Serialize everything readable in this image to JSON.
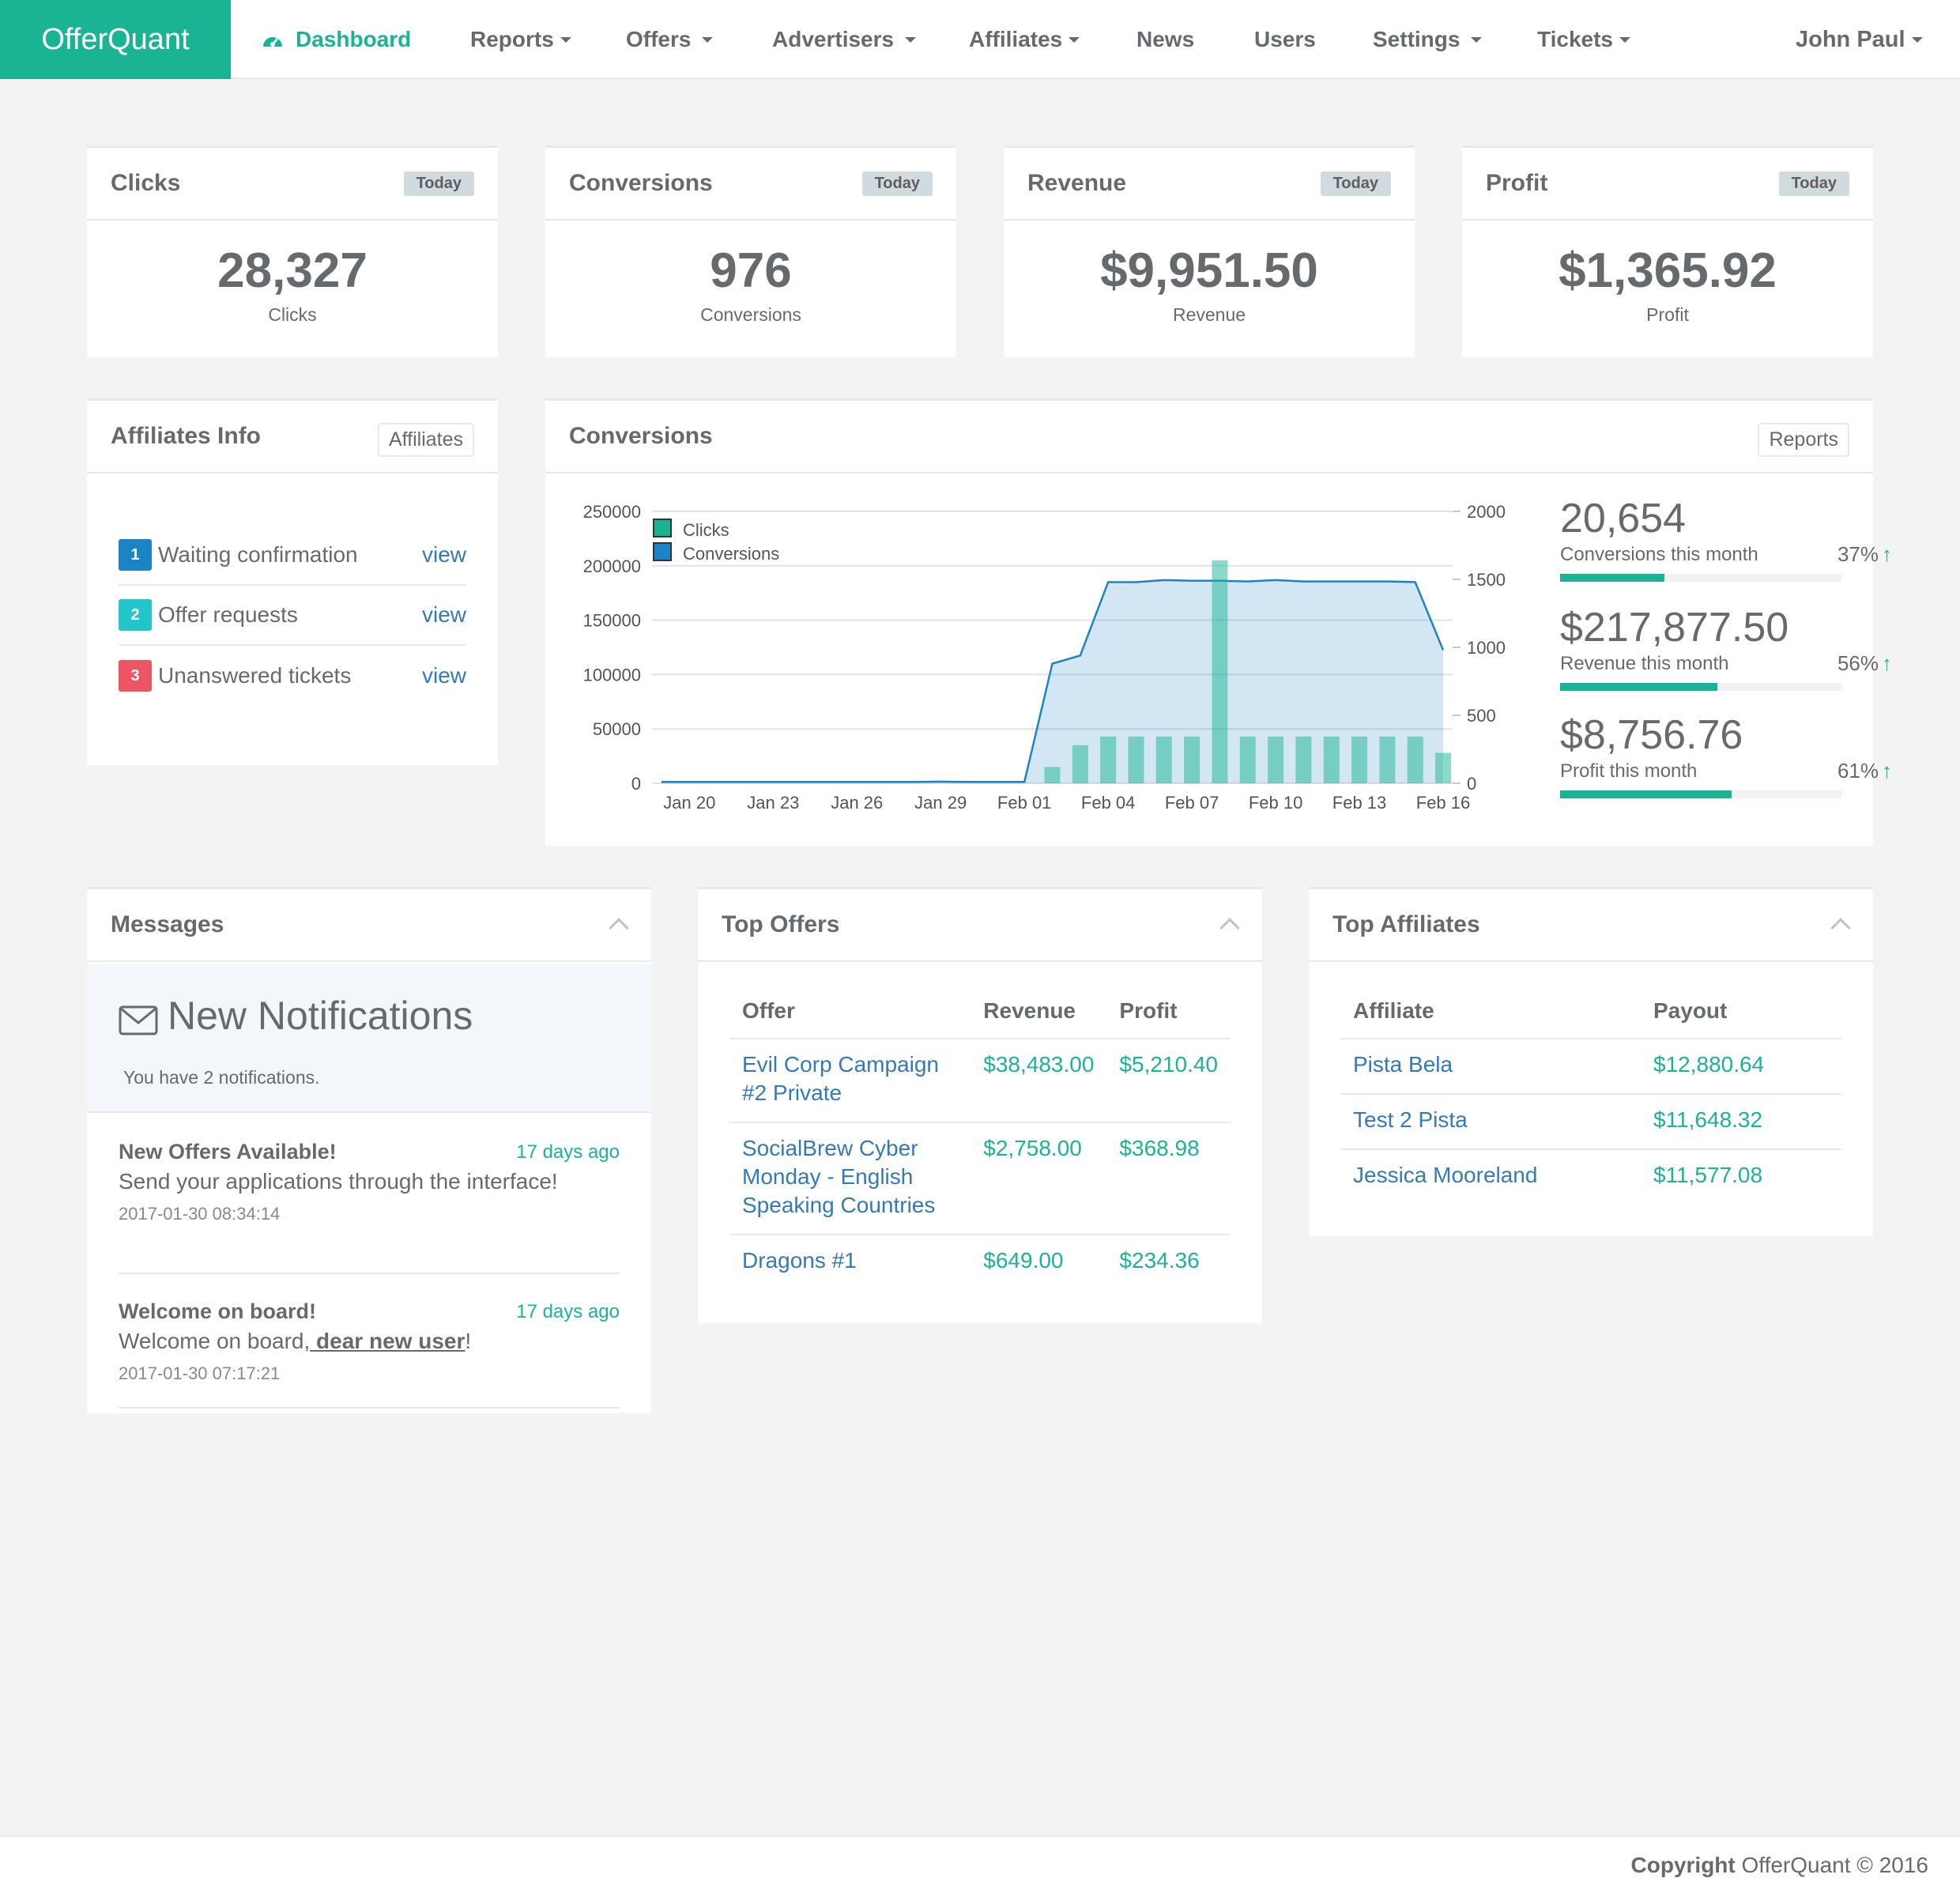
{
  "nav": {
    "brand": "OfferQuant",
    "items": [
      {
        "label": "Dashboard"
      },
      {
        "label": "Reports"
      },
      {
        "label": "Offers"
      },
      {
        "label": "Advertisers"
      },
      {
        "label": "Affiliates"
      },
      {
        "label": "News"
      },
      {
        "label": "Users"
      },
      {
        "label": "Settings"
      },
      {
        "label": "Tickets"
      }
    ],
    "user": "John Paul"
  },
  "stat_cards": [
    {
      "title": "Clicks",
      "badge": "Today",
      "value": "28,327",
      "sub": "Clicks"
    },
    {
      "title": "Conversions",
      "badge": "Today",
      "value": "976",
      "sub": "Conversions"
    },
    {
      "title": "Revenue",
      "badge": "Today",
      "value": "$9,951.50",
      "sub": "Revenue"
    },
    {
      "title": "Profit",
      "badge": "Today",
      "value": "$1,365.92",
      "sub": "Profit"
    }
  ],
  "affiliates_info": {
    "title": "Affiliates Info",
    "button": "Affiliates",
    "rows": [
      {
        "count": "1",
        "label": "Waiting confirmation",
        "link": "view",
        "color": "#1c84c6"
      },
      {
        "count": "2",
        "label": "Offer requests",
        "link": "view",
        "color": "#23c6c8"
      },
      {
        "count": "3",
        "label": "Unanswered tickets",
        "link": "view",
        "color": "#ed5565"
      }
    ]
  },
  "conversions_panel": {
    "title": "Conversions",
    "button": "Reports",
    "stats": [
      {
        "value": "20,654",
        "label": "Conversions this month",
        "pct": "37%",
        "fill": 0.37
      },
      {
        "value": "$217,877.50",
        "label": "Revenue this month",
        "pct": "56%",
        "fill": 0.56
      },
      {
        "value": "$8,756.76",
        "label": "Profit this month",
        "pct": "61%",
        "fill": 0.61
      }
    ]
  },
  "chart_data": {
    "type": "bar",
    "title": "",
    "x_ticks": [
      "Jan 20",
      "Jan 23",
      "Jan 26",
      "Jan 29",
      "Feb 01",
      "Feb 04",
      "Feb 07",
      "Feb 10",
      "Feb 13",
      "Feb 16"
    ],
    "y_left_ticks": [
      "250000",
      "200000",
      "150000",
      "100000",
      "50000",
      "0"
    ],
    "y_right_ticks": [
      "2000",
      "1500",
      "1000",
      "500",
      "0"
    ],
    "ylim_left": [
      0,
      250000
    ],
    "ylim_right": [
      0,
      2000
    ],
    "legend": [
      "Clicks",
      "Conversions"
    ],
    "legend_position": "top-left",
    "grid": true,
    "colors": {
      "clicks": "#1ab394",
      "conversions": "#1c84c6"
    },
    "x_days": [
      "Jan 19",
      "Jan 20",
      "Jan 21",
      "Jan 22",
      "Jan 23",
      "Jan 24",
      "Jan 25",
      "Jan 26",
      "Jan 27",
      "Jan 28",
      "Jan 29",
      "Jan 30",
      "Jan 31",
      "Feb 01",
      "Feb 02",
      "Feb 03",
      "Feb 04",
      "Feb 05",
      "Feb 06",
      "Feb 07",
      "Feb 08",
      "Feb 09",
      "Feb 10",
      "Feb 11",
      "Feb 12",
      "Feb 13",
      "Feb 14",
      "Feb 15",
      "Feb 16"
    ],
    "series": [
      {
        "name": "Clicks",
        "axis": "left",
        "style": "bar",
        "values": [
          0,
          0,
          0,
          0,
          0,
          0,
          0,
          0,
          0,
          0,
          0,
          0,
          0,
          0,
          15000,
          35000,
          43000,
          43000,
          43000,
          43000,
          205000,
          43000,
          43000,
          43000,
          43000,
          43000,
          43000,
          43000,
          28000
        ]
      },
      {
        "name": "Conversions",
        "axis": "right",
        "style": "area",
        "values": [
          10,
          10,
          10,
          10,
          10,
          10,
          10,
          10,
          10,
          10,
          12,
          10,
          10,
          10,
          880,
          940,
          1480,
          1480,
          1495,
          1490,
          1490,
          1485,
          1495,
          1485,
          1485,
          1485,
          1485,
          1480,
          980
        ]
      }
    ]
  },
  "messages": {
    "title": "Messages",
    "notif_title": "New Notifications",
    "notif_sub": "You have 2 notifications.",
    "items": [
      {
        "title": "New Offers Available!",
        "ago": "17 days ago",
        "text": "Send your applications through the interface!",
        "date": "2017-01-30 08:34:14"
      },
      {
        "title": "Welcome on board!",
        "ago": "17 days ago",
        "text_pre": "Welcome on board,",
        "text_link": " dear new user",
        "text_post": "!",
        "date": "2017-01-30 07:17:21"
      }
    ]
  },
  "top_offers": {
    "title": "Top Offers",
    "headers": [
      "Offer",
      "Revenue",
      "Profit"
    ],
    "rows": [
      {
        "offer": "Evil Corp Campaign #2 Private",
        "revenue": "$38,483.00",
        "profit": "$5,210.40"
      },
      {
        "offer": "SocialBrew Cyber Monday - English Speaking Countries",
        "revenue": "$2,758.00",
        "profit": "$368.98"
      },
      {
        "offer": "Dragons #1",
        "revenue": "$649.00",
        "profit": "$234.36"
      }
    ]
  },
  "top_affiliates": {
    "title": "Top Affiliates",
    "headers": [
      "Affiliate",
      "Payout"
    ],
    "rows": [
      {
        "affiliate": "Pista Bela",
        "payout": "$12,880.64"
      },
      {
        "affiliate": "Test 2 Pista",
        "payout": "$11,648.32"
      },
      {
        "affiliate": "Jessica Mooreland",
        "payout": "$11,577.08"
      }
    ]
  },
  "footer": {
    "bold": "Copyright",
    "text": " OfferQuant © 2016"
  }
}
